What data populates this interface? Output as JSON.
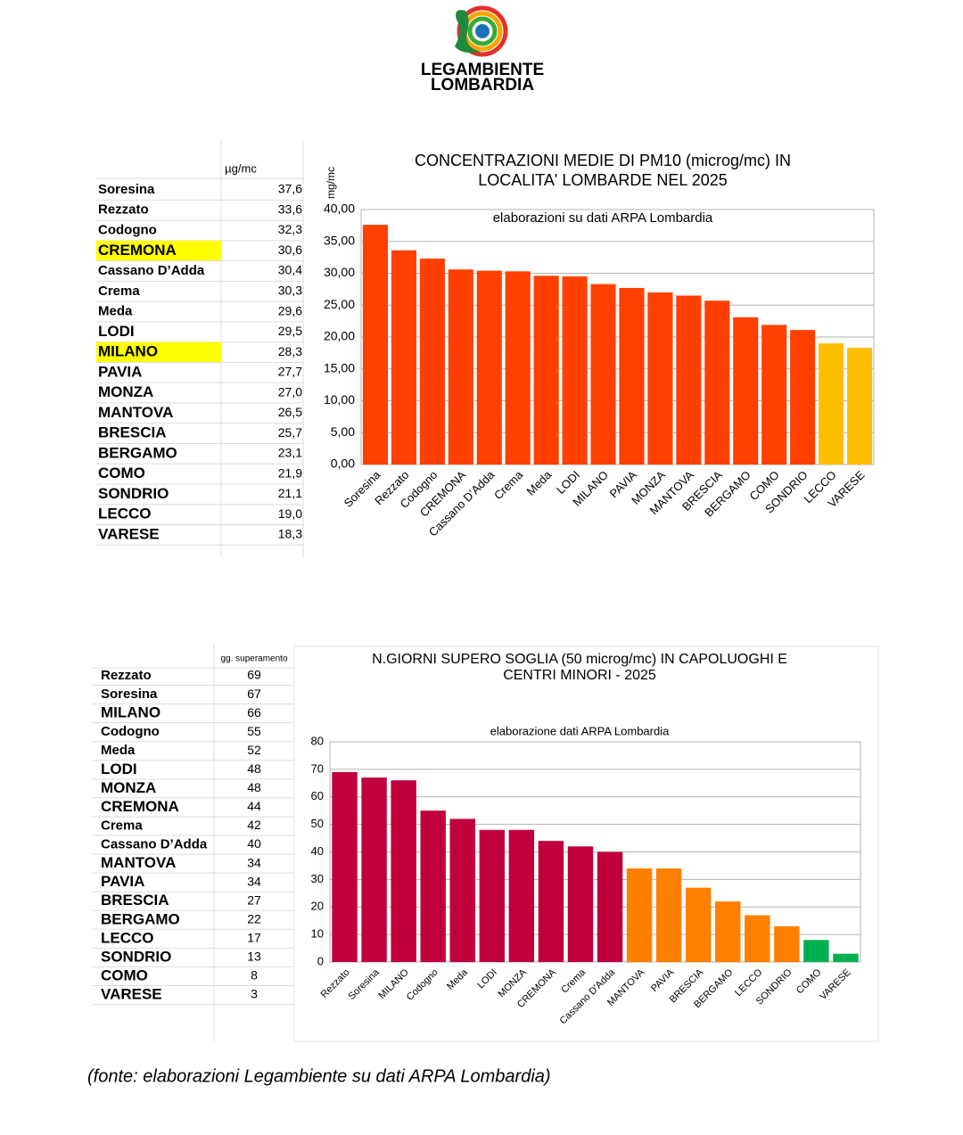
{
  "logo": {
    "line1": "LEGAMBIENTE",
    "line2": "LOMBARDIA"
  },
  "tables": [
    {
      "header": "µg/mc",
      "rows": [
        {
          "name": "Soresina",
          "value": "37,6"
        },
        {
          "name": "Rezzato",
          "value": "33,6"
        },
        {
          "name": "Codogno",
          "value": "32,3"
        },
        {
          "name": "CREMONA",
          "value": "30,6",
          "highlight": true
        },
        {
          "name": "Cassano D’Adda",
          "value": "30,4"
        },
        {
          "name": "Crema",
          "value": "30,3"
        },
        {
          "name": "Meda",
          "value": "29,6"
        },
        {
          "name": "LODI",
          "value": "29,5"
        },
        {
          "name": "MILANO",
          "value": "28,3",
          "highlight": true
        },
        {
          "name": "PAVIA",
          "value": "27,7"
        },
        {
          "name": "MONZA",
          "value": "27,0"
        },
        {
          "name": "MANTOVA",
          "value": "26,5"
        },
        {
          "name": "BRESCIA",
          "value": "25,7"
        },
        {
          "name": "BERGAMO",
          "value": "23,1"
        },
        {
          "name": "COMO",
          "value": "21,9"
        },
        {
          "name": "SONDRIO",
          "value": "21,1"
        },
        {
          "name": "LECCO",
          "value": "19,0"
        },
        {
          "name": "VARESE",
          "value": "18,3"
        }
      ]
    },
    {
      "header": "gg. superamento",
      "rows": [
        {
          "name": "Rezzato",
          "value": "69"
        },
        {
          "name": "Soresina",
          "value": "67"
        },
        {
          "name": "MILANO",
          "value": "66"
        },
        {
          "name": "Codogno",
          "value": "55"
        },
        {
          "name": "Meda",
          "value": "52"
        },
        {
          "name": "LODI",
          "value": "48"
        },
        {
          "name": "MONZA",
          "value": "48"
        },
        {
          "name": "CREMONA",
          "value": "44"
        },
        {
          "name": "Crema",
          "value": "42"
        },
        {
          "name": "Cassano D’Adda",
          "value": "40"
        },
        {
          "name": "MANTOVA",
          "value": "34"
        },
        {
          "name": "PAVIA",
          "value": "34"
        },
        {
          "name": "BRESCIA",
          "value": "27"
        },
        {
          "name": "BERGAMO",
          "value": "22"
        },
        {
          "name": "LECCO",
          "value": "17"
        },
        {
          "name": "SONDRIO",
          "value": "13"
        },
        {
          "name": "COMO",
          "value": "8"
        },
        {
          "name": "VARESE",
          "value": "3",
          "color": "#e8000b"
        }
      ]
    }
  ],
  "chart_data": [
    {
      "type": "bar",
      "title": [
        "CONCENTRAZIONI MEDIE DI PM10 (microg/mc) IN",
        "LOCALITA' LOMBARDE NEL 2025"
      ],
      "subtitle": "elaborazioni su dati ARPA Lombardia",
      "y_label": "mg/mc",
      "categories": [
        "Soresina",
        "Rezzato",
        "Codogno",
        "CREMONA",
        "Cassano D’Adda",
        "Crema",
        "Meda",
        "LODI",
        "MILANO",
        "PAVIA",
        "MONZA",
        "MANTOVA",
        "BRESCIA",
        "BERGAMO",
        "COMO",
        "SONDRIO",
        "LECCO",
        "VARESE"
      ],
      "values": [
        37.6,
        33.6,
        32.3,
        30.6,
        30.4,
        30.3,
        29.6,
        29.5,
        28.3,
        27.7,
        27.0,
        26.5,
        25.7,
        23.1,
        21.9,
        21.1,
        19.0,
        18.3
      ],
      "colors": [
        "#ff4000",
        "#ff4000",
        "#ff4000",
        "#ff4000",
        "#ff4000",
        "#ff4000",
        "#ff4000",
        "#ff4000",
        "#ff4000",
        "#ff4000",
        "#ff4000",
        "#ff4000",
        "#ff4000",
        "#ff4000",
        "#ff4000",
        "#ff4000",
        "#ffbf00",
        "#ffbf00"
      ],
      "ylim": [
        0,
        40
      ],
      "yticks": [
        {
          "value": 0,
          "label": "0,00"
        },
        {
          "value": 5,
          "label": "5,00"
        },
        {
          "value": 10,
          "label": "10,00"
        },
        {
          "value": 15,
          "label": "15,00"
        },
        {
          "value": 20,
          "label": "20,00"
        },
        {
          "value": 25,
          "label": "25,00"
        },
        {
          "value": 30,
          "label": "30,00"
        },
        {
          "value": 35,
          "label": "35,00"
        },
        {
          "value": 40,
          "label": "40,00"
        }
      ],
      "grid": true
    },
    {
      "type": "bar",
      "title": [
        "N.GIORNI SUPERO SOGLIA (50 microg/mc) IN CAPOLUOGHI E",
        "CENTRI MINORI - 2025"
      ],
      "subtitle": "elaborazione dati ARPA Lombardia",
      "categories": [
        "Rezzato",
        "Soresina",
        "MILANO",
        "Codogno",
        "Meda",
        "LODI",
        "MONZA",
        "CREMONA",
        "Crema",
        "Cassano D'Adda",
        "MANTOVA",
        "PAVIA",
        "BRESCIA",
        "BERGAMO",
        "LECCO",
        "SONDRIO",
        "COMO",
        "VARESE"
      ],
      "values": [
        69,
        67,
        66,
        55,
        52,
        48,
        48,
        44,
        42,
        40,
        34,
        34,
        27,
        22,
        17,
        13,
        8,
        3
      ],
      "colors": [
        "#c0003c",
        "#c0003c",
        "#c0003c",
        "#c0003c",
        "#c0003c",
        "#c0003c",
        "#c0003c",
        "#c0003c",
        "#c0003c",
        "#c0003c",
        "#ff8000",
        "#ff8000",
        "#ff8000",
        "#ff8000",
        "#ff8000",
        "#ff8000",
        "#00b050",
        "#00b050"
      ],
      "ylim": [
        0,
        80
      ],
      "yticks": [
        0,
        10,
        20,
        30,
        40,
        50,
        60,
        70,
        80
      ],
      "grid": true
    }
  ],
  "footer": "(fonte: elaborazioni Legambiente su dati ARPA Lombardia)"
}
